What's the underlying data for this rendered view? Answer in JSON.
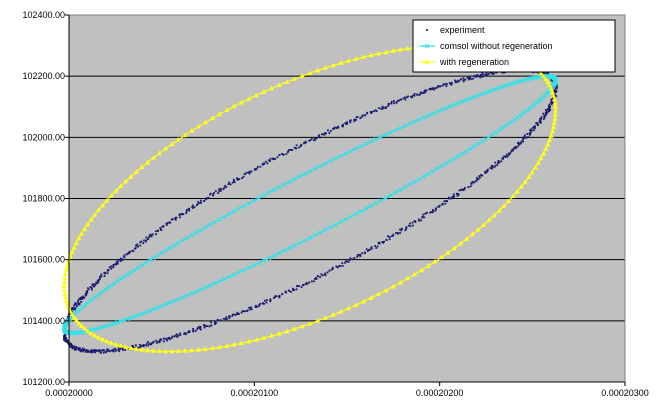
{
  "chart_data": {
    "type": "scatter",
    "title": "",
    "xlabel": "",
    "ylabel": "",
    "xlim": [
      0.0002,
      0.000203
    ],
    "ylim": [
      101200,
      102400
    ],
    "x_ticks": [
      "0.00020000",
      "0.00020100",
      "0.00020200",
      "0.00020300"
    ],
    "y_ticks": [
      "101200.00",
      "101400.00",
      "101600.00",
      "101800.00",
      "102000.00",
      "102200.00",
      "102400.00"
    ],
    "grid": "horizontal",
    "plot_background": "#c0c0c0",
    "legend_position": "top-right",
    "series": [
      {
        "name": "experiment",
        "color": "#1a1a6e",
        "marker": "dot",
        "ellipse": {
          "cx": 0.0002013,
          "cy": 101760,
          "ax": 1.325e-06,
          "ay": 460,
          "phase_deg": -30,
          "note_points": 1200
        }
      },
      {
        "name": "comsol without regeneration",
        "color": "#33e0e8",
        "marker": "x",
        "ellipse": {
          "cx": 0.0002013,
          "cy": 101780,
          "ax": 1.325e-06,
          "ay": 420,
          "phase_deg": -15,
          "note_points": 300
        }
      },
      {
        "name": "with regeneration",
        "color": "#ffff1a",
        "marker": "triangle",
        "ellipse": {
          "cx": 0.0002013,
          "cy": 101800,
          "ax": 1.325e-06,
          "ay": 500,
          "phase_deg": -55,
          "note_points": 200
        }
      }
    ]
  }
}
